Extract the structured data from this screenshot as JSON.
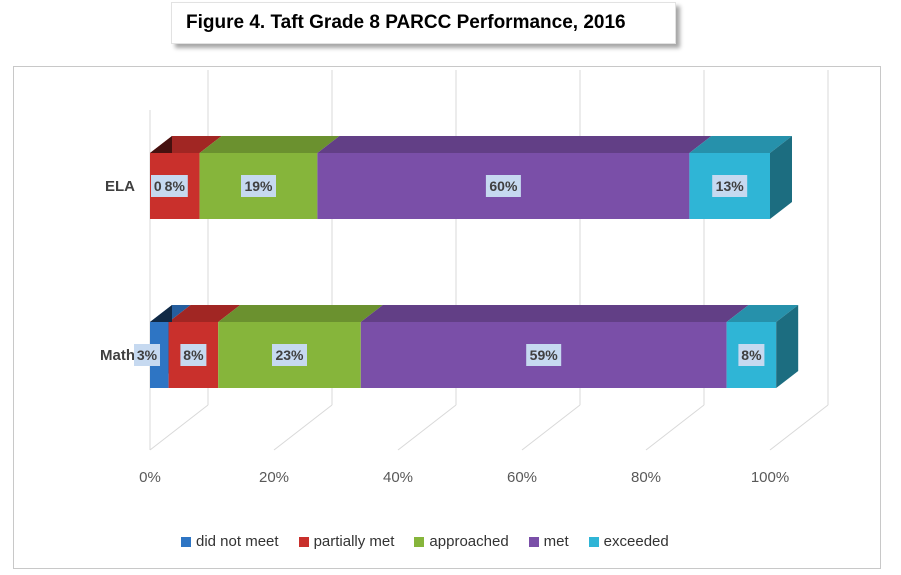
{
  "title": "Figure 4. Taft Grade 8 PARCC Performance, 2016",
  "chart_data": {
    "type": "bar",
    "orientation": "horizontal",
    "stacked": true,
    "three_d": true,
    "categories": [
      "ELA",
      "Math"
    ],
    "series": [
      {
        "name": "did not meet",
        "color": "#2e75c4",
        "values": [
          0,
          3
        ]
      },
      {
        "name": "partially met",
        "color": "#c9302c",
        "values": [
          8,
          8
        ]
      },
      {
        "name": "approached",
        "color": "#86b53b",
        "values": [
          19,
          23
        ]
      },
      {
        "name": "met",
        "color": "#7a4fa8",
        "values": [
          60,
          59
        ]
      },
      {
        "name": "exceeded",
        "color": "#2fb5d6",
        "values": [
          13,
          8
        ]
      }
    ],
    "data_labels": [
      [
        "0%",
        "8%",
        "19%",
        "60%",
        "13%"
      ],
      [
        "3%",
        "8%",
        "23%",
        "59%",
        "8%"
      ]
    ],
    "xticks": [
      "0%",
      "20%",
      "40%",
      "60%",
      "80%",
      "100%"
    ],
    "xlim": [
      0,
      100
    ],
    "grid": true,
    "legend_position": "bottom"
  }
}
